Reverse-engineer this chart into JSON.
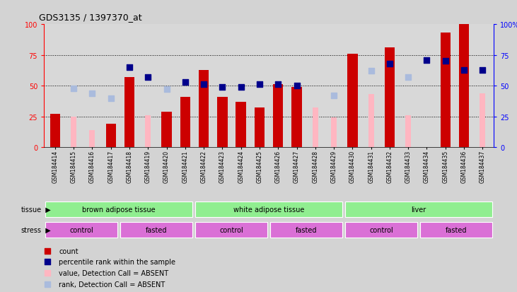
{
  "title": "GDS3135 / 1397370_at",
  "samples": [
    "GSM184414",
    "GSM184415",
    "GSM184416",
    "GSM184417",
    "GSM184418",
    "GSM184419",
    "GSM184420",
    "GSM184421",
    "GSM184422",
    "GSM184423",
    "GSM184424",
    "GSM184425",
    "GSM184426",
    "GSM184427",
    "GSM184428",
    "GSM184429",
    "GSM184430",
    "GSM184431",
    "GSM184432",
    "GSM184433",
    "GSM184434",
    "GSM184435",
    "GSM184436",
    "GSM184437"
  ],
  "count": [
    27,
    null,
    null,
    19,
    57,
    null,
    29,
    41,
    63,
    41,
    37,
    32,
    51,
    49,
    null,
    null,
    76,
    null,
    81,
    null,
    null,
    93,
    100,
    null
  ],
  "count_absent": [
    null,
    25,
    14,
    null,
    null,
    26,
    null,
    null,
    null,
    null,
    null,
    null,
    null,
    null,
    32,
    24,
    null,
    43,
    null,
    26,
    null,
    null,
    null,
    44
  ],
  "rank": [
    null,
    null,
    null,
    null,
    65,
    57,
    null,
    53,
    51,
    49,
    49,
    51,
    51,
    50,
    null,
    null,
    null,
    null,
    68,
    null,
    71,
    70,
    63,
    63
  ],
  "rank_absent": [
    null,
    48,
    44,
    40,
    null,
    null,
    47,
    null,
    null,
    null,
    null,
    null,
    null,
    null,
    null,
    42,
    null,
    62,
    null,
    57,
    null,
    null,
    null,
    null
  ],
  "bar_color_present": "#CC0000",
  "bar_color_absent": "#FFB6C1",
  "rank_color_present": "#00008B",
  "rank_color_absent": "#AABBDD",
  "plot_bg_color": "#D8D8D8",
  "yticks": [
    0,
    25,
    50,
    75,
    100
  ],
  "grid_lines": [
    25,
    50,
    75
  ],
  "tissue_row_color": "#90EE90",
  "stress_row_color": "#DA70D6"
}
